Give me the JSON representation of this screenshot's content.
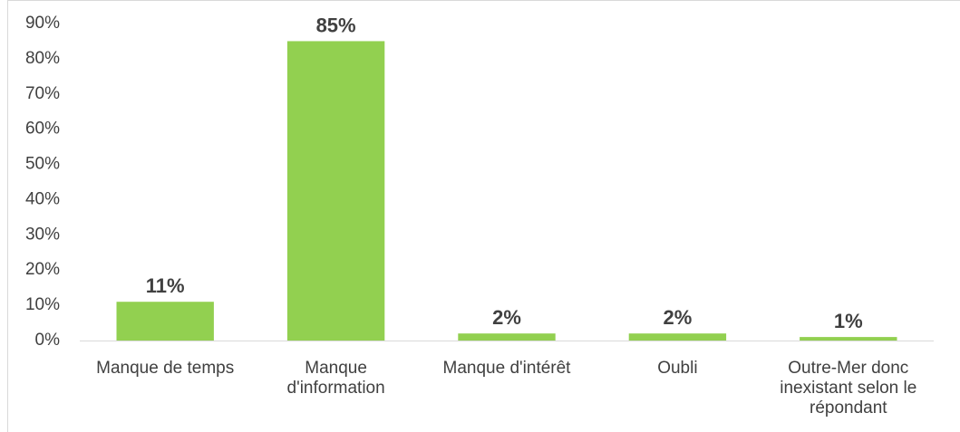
{
  "chart_data": {
    "type": "bar",
    "categories": [
      "Manque de temps",
      "Manque d'information",
      "Manque d'intérêt",
      "Oubli",
      "Outre-Mer donc inexistant selon le répondant"
    ],
    "values": [
      11,
      85,
      2,
      2,
      1
    ],
    "value_labels": [
      "11%",
      "85%",
      "2%",
      "2%",
      "1%"
    ],
    "color": "#92d050",
    "ylim": [
      0,
      90
    ],
    "yticks": [
      {
        "value": 0,
        "label": "0%"
      },
      {
        "value": 10,
        "label": "10%"
      },
      {
        "value": 20,
        "label": "20%"
      },
      {
        "value": 30,
        "label": "30%"
      },
      {
        "value": 40,
        "label": "40%"
      },
      {
        "value": 50,
        "label": "50%"
      },
      {
        "value": 60,
        "label": "60%"
      },
      {
        "value": 70,
        "label": "70%"
      },
      {
        "value": 80,
        "label": "80%"
      },
      {
        "value": 90,
        "label": "90%"
      }
    ],
    "grid": false
  }
}
